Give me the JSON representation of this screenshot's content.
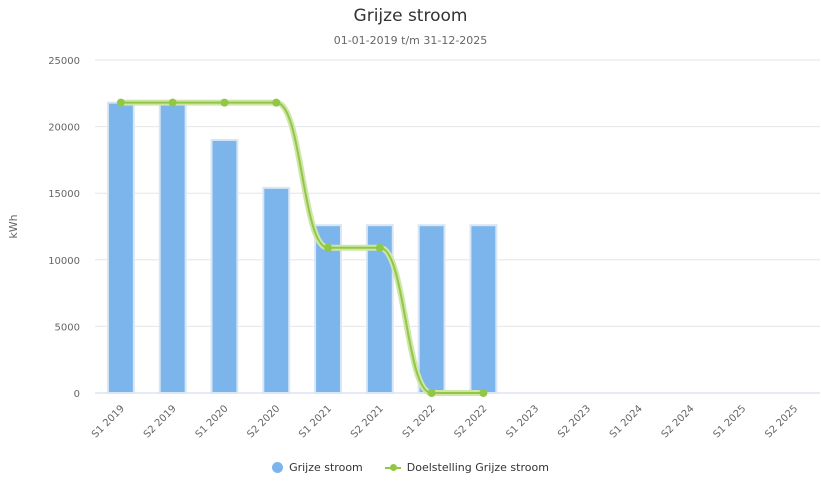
{
  "chart_data": {
    "type": "bar",
    "title": "Grijze stroom",
    "subtitle": "01-01-2019 t/m 31-12-2025",
    "ylabel": "kWh",
    "xlabel": "",
    "ylim": [
      0,
      25000
    ],
    "yticks": [
      0,
      5000,
      10000,
      15000,
      20000,
      25000
    ],
    "grid": true,
    "legend_position": "bottom",
    "categories": [
      "S1 2019",
      "S2 2019",
      "S1 2020",
      "S2 2020",
      "S1 2021",
      "S2 2021",
      "S1 2022",
      "S2 2022",
      "S1 2023",
      "S2 2023",
      "S1 2024",
      "S2 2024",
      "S1 2025",
      "S2 2025"
    ],
    "series": [
      {
        "name": "Grijze stroom",
        "type": "bar",
        "color": "#7cb5ec",
        "values": [
          21800,
          21800,
          19000,
          15400,
          12600,
          12600,
          12600,
          12600,
          null,
          null,
          null,
          null,
          null,
          null
        ]
      },
      {
        "name": "Doelstelling Grijze stroom",
        "type": "line",
        "color": "#90c846",
        "values": [
          21800,
          21800,
          21800,
          21800,
          10900,
          10900,
          0,
          0,
          null,
          null,
          null,
          null,
          null,
          null
        ]
      }
    ]
  }
}
